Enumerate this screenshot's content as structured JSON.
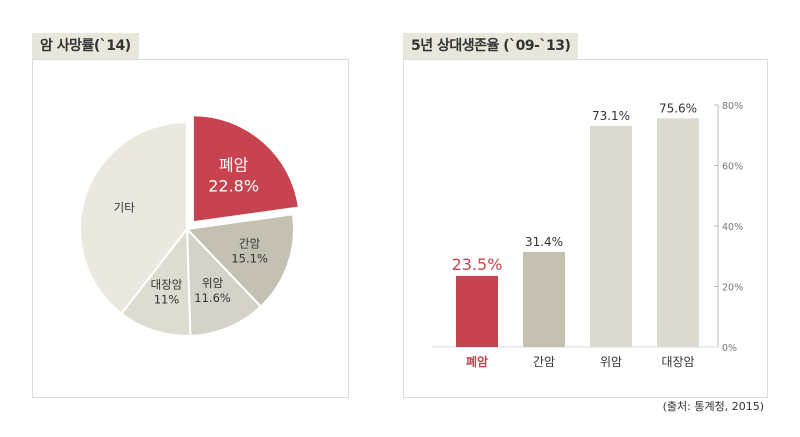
{
  "left_panel": {
    "title": "암 사망률(`14)"
  },
  "right_panel": {
    "title": "5년 상대생존율 (`09-`13)"
  },
  "source": "(출처: 통계청, 2015)",
  "colors": {
    "highlight": "#c84350",
    "gan": "#c4c1b3",
    "wi": "#d5d3c8",
    "daejang": "#dedcd1",
    "other": "#ebe9df",
    "bar_gray": "#c4c1b3",
    "bar_light": "#dcdbd0"
  },
  "chart_data": [
    {
      "type": "pie",
      "title": "암 사망률(`14)",
      "slices": [
        {
          "name": "폐암",
          "label": "폐암",
          "value_label": "22.8%",
          "value": 22.8,
          "exploded": true,
          "color": "#c84350",
          "text_color": "#ffffff"
        },
        {
          "name": "간암",
          "label": "간암",
          "value_label": "15.1%",
          "value": 15.1,
          "color": "#c4c1b3",
          "text_color": "#333333"
        },
        {
          "name": "위암",
          "label": "위암",
          "value_label": "11.6%",
          "value": 11.6,
          "color": "#d5d3c8",
          "text_color": "#333333"
        },
        {
          "name": "대장암",
          "label": "대장암",
          "value_label": "11%",
          "value": 11.0,
          "color": "#dedcd1",
          "text_color": "#333333"
        },
        {
          "name": "기타",
          "label": "기타",
          "value_label": "",
          "value": 39.5,
          "color": "#ebe9df",
          "text_color": "#333333"
        }
      ]
    },
    {
      "type": "bar",
      "title": "5년 상대생존율 (`09-`13)",
      "categories": [
        "폐암",
        "간암",
        "위암",
        "대장암"
      ],
      "values": [
        23.5,
        31.4,
        73.1,
        75.6
      ],
      "value_labels": [
        "23.5%",
        "31.4%",
        "73.1%",
        "75.6%"
      ],
      "highlight_index": 0,
      "ylim": [
        0,
        80
      ],
      "yticks": [
        0,
        20,
        40,
        60,
        80
      ],
      "ytick_labels": [
        "0%",
        "20%",
        "40%",
        "60%",
        "80%"
      ],
      "yaxis_position": "right",
      "grid": false
    }
  ]
}
